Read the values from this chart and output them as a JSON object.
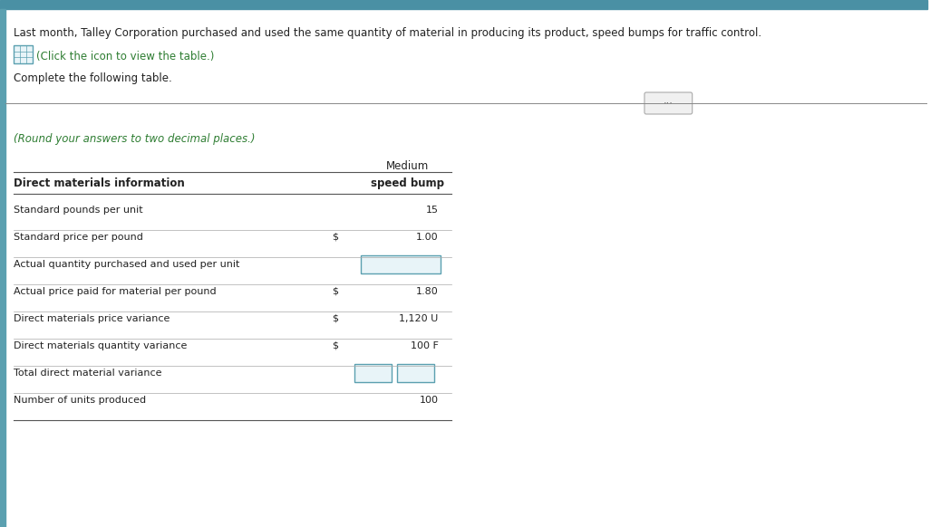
{
  "bg_color": "#ffffff",
  "top_bar_color": "#4a90a4",
  "header_text": "Last month, Talley Corporation purchased and used the same quantity of material in producing its product, speed bumps for traffic control.",
  "icon_text": "(Click the icon to view the table.)",
  "icon_color": "#2e7d32",
  "complete_text": "Complete the following table.",
  "round_note": "(Round your answers to two decimal places.)",
  "round_note_color": "#2e7d32",
  "col_header_line1": "Medium",
  "col_header_line2": "speed bump",
  "rows": [
    {
      "label": "Direct materials information",
      "dollar": false,
      "value": "",
      "bold": true,
      "input": false,
      "col_header": true
    },
    {
      "label": "Standard pounds per unit",
      "dollar": false,
      "value": "15",
      "bold": false,
      "input": false
    },
    {
      "label": "Standard price per pound",
      "dollar": true,
      "value": "1.00",
      "bold": false,
      "input": false
    },
    {
      "label": "Actual quantity purchased and used per unit",
      "dollar": false,
      "value": "",
      "bold": false,
      "input": true,
      "two_boxes": false
    },
    {
      "label": "Actual price paid for material per pound",
      "dollar": true,
      "value": "1.80",
      "bold": false,
      "input": false
    },
    {
      "label": "Direct materials price variance",
      "dollar": true,
      "value": "1,120 U",
      "bold": false,
      "input": false
    },
    {
      "label": "Direct materials quantity variance",
      "dollar": true,
      "value": "100 F",
      "bold": false,
      "input": false
    },
    {
      "label": "Total direct material variance",
      "dollar": false,
      "value": "",
      "bold": false,
      "input": true,
      "two_boxes": true
    },
    {
      "label": "Number of units produced",
      "dollar": false,
      "value": "100",
      "bold": false,
      "input": false
    }
  ],
  "separator_color": "#555555",
  "input_box_color": "#e8f4f8",
  "input_box_border": "#5ba0b0",
  "dots_button_color": "#cccccc",
  "left_bar_color": "#5ba0b0"
}
